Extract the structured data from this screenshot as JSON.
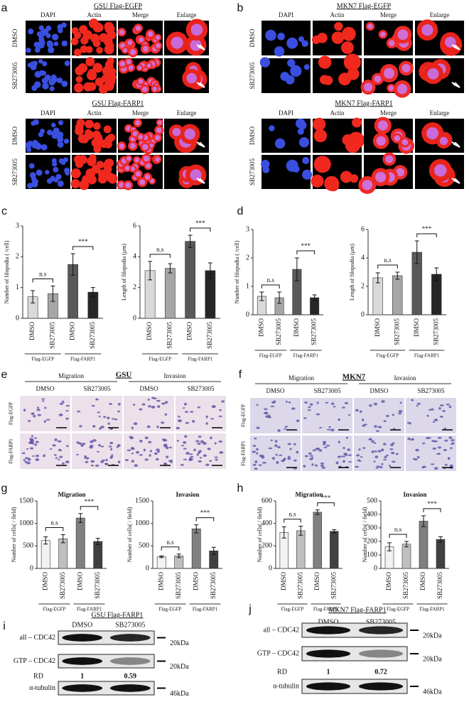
{
  "panels": {
    "a": {
      "letter": "a",
      "blocks": [
        {
          "title": "GSU Flag-EGFP",
          "columns": [
            "DAPI",
            "Actin",
            "Merge",
            "Enlarge"
          ],
          "rows": [
            "DMSO",
            "SB273005"
          ]
        },
        {
          "title": "GSU Flag-FARP1",
          "columns": [
            "DAPI",
            "Actin",
            "Merge",
            "Enlarge"
          ],
          "rows": [
            "DMSO",
            "SB273005"
          ]
        }
      ]
    },
    "b": {
      "letter": "b",
      "blocks": [
        {
          "title": "MKN7 Flag-EGFP",
          "columns": [
            "DAPI",
            "Actin",
            "Merge",
            "Enlarge"
          ],
          "rows": [
            "DMSO",
            "SB273005"
          ]
        },
        {
          "title": "MKN7 Flag-FARP1",
          "columns": [
            "DAPI",
            "Actin",
            "Merge",
            "Enlarge"
          ],
          "rows": [
            "DMSO",
            "SB273005"
          ]
        }
      ]
    },
    "c": {
      "letter": "c"
    },
    "d": {
      "letter": "d"
    },
    "e": {
      "letter": "e",
      "cell_line": "GSU",
      "assays": [
        "Migration",
        "Invasion"
      ],
      "columns": [
        "DMSO",
        "SB273005",
        "DMSO",
        "SB273005"
      ],
      "rows": [
        "Flag-EGFP",
        "Flag-FARP1"
      ]
    },
    "f": {
      "letter": "f",
      "cell_line": "MKN7",
      "assays": [
        "Migration",
        "Invasion"
      ],
      "columns": [
        "DMSO",
        "SB273005",
        "DMSO",
        "SB273005"
      ],
      "rows": [
        "Flag-EGFP",
        "Flag-FARP1"
      ]
    },
    "g": {
      "letter": "g"
    },
    "h": {
      "letter": "h"
    },
    "i": {
      "letter": "i",
      "title": "GSU Flag-FARP1",
      "columns": [
        "DMSO",
        "SB273005"
      ],
      "rows": [
        "all – CDC42",
        "GTP – CDC42",
        "α-tubulin"
      ],
      "markers": [
        "20kDa",
        "20kDa",
        "46kDa"
      ],
      "rd_label": "RD",
      "rd_values": [
        "1",
        "0.59"
      ]
    },
    "j": {
      "letter": "j",
      "title": "MKN7 Flag-FARP1",
      "columns": [
        "DMSO",
        "SB273005"
      ],
      "rows": [
        "all – CDC42",
        "GTP – CDC42",
        "α-tubulin"
      ],
      "markers": [
        "20kDa",
        "20kDa",
        "46kDa"
      ],
      "rd_label": "RD",
      "rd_values": [
        "1",
        "0.72"
      ]
    }
  },
  "chart_data": [
    {
      "type": "bar",
      "ylabel": "Number of filopodia ( /cell)",
      "categories": [
        "DMSO",
        "SB273005",
        "DMSO",
        "SB273005"
      ],
      "values": [
        0.7,
        0.8,
        1.75,
        0.85
      ],
      "errors": [
        0.2,
        0.25,
        0.35,
        0.15
      ],
      "colors": [
        "#d9d9d9",
        "#a6a6a6",
        "#595959",
        "#262626"
      ],
      "ylim": [
        0,
        3
      ],
      "yticks": [
        0,
        1,
        2,
        3
      ],
      "groups": [
        "Flag-EGFP",
        "Flag-FARP1"
      ],
      "annotations": [
        "n.s",
        "***"
      ]
    },
    {
      "type": "bar",
      "ylabel": "Length of filopodia (μm)",
      "categories": [
        "DMSO",
        "SB273005",
        "DMSO",
        "SB273005"
      ],
      "values": [
        3.1,
        3.25,
        5.0,
        3.1
      ],
      "errors": [
        0.6,
        0.3,
        0.4,
        0.5
      ],
      "colors": [
        "#d9d9d9",
        "#a6a6a6",
        "#595959",
        "#262626"
      ],
      "ylim": [
        0,
        6
      ],
      "yticks": [
        0,
        2,
        4,
        6
      ],
      "groups": [
        "Flag-EGFP",
        "Flag-FARP1"
      ],
      "annotations": [
        "n.s",
        "***"
      ]
    },
    {
      "type": "bar",
      "ylabel": "Number of filopodia ( /cell)",
      "categories": [
        "DMSO",
        "SB273005",
        "DMSO",
        "SB273005"
      ],
      "values": [
        0.65,
        0.6,
        1.6,
        0.6
      ],
      "errors": [
        0.15,
        0.2,
        0.4,
        0.1
      ],
      "colors": [
        "#d9d9d9",
        "#a6a6a6",
        "#595959",
        "#262626"
      ],
      "ylim": [
        0,
        3
      ],
      "yticks": [
        0,
        1,
        2,
        3
      ],
      "groups": [
        "Flag-EGFP",
        "Flag-FARP1"
      ],
      "annotations": [
        "n.s",
        "***"
      ]
    },
    {
      "type": "bar",
      "ylabel": "Length of filopodia (μm)",
      "categories": [
        "DMSO",
        "SB273005",
        "DMSO",
        "SB273005"
      ],
      "values": [
        2.6,
        2.75,
        4.4,
        2.85
      ],
      "errors": [
        0.35,
        0.25,
        0.8,
        0.45
      ],
      "colors": [
        "#d9d9d9",
        "#a6a6a6",
        "#595959",
        "#262626"
      ],
      "ylim": [
        0,
        6
      ],
      "yticks": [
        0,
        2,
        4,
        6
      ],
      "groups": [
        "Flag-EGFP",
        "Flag-FARP1"
      ],
      "annotations": [
        "n.s",
        "***"
      ]
    },
    {
      "type": "bar",
      "title": "Migration",
      "ylabel": "Number of cells( / field)",
      "categories": [
        "DMSO",
        "SB273005",
        "DMSO",
        "SB273005"
      ],
      "values": [
        620,
        660,
        1120,
        600
      ],
      "errors": [
        80,
        90,
        100,
        70
      ],
      "colors": [
        "#f2f2f2",
        "#bfbfbf",
        "#808080",
        "#404040"
      ],
      "ylim": [
        0,
        1500
      ],
      "yticks": [
        0,
        500,
        1000,
        1500
      ],
      "groups": [
        "Flag-EGFP",
        "Flag-FARP1"
      ],
      "annotations": [
        "n.s",
        "***"
      ]
    },
    {
      "type": "bar",
      "title": "Invasion",
      "ylabel": "Number of cells( / field)",
      "categories": [
        "DMSO",
        "SB273005",
        "DMSO",
        "SB273005"
      ],
      "values": [
        260,
        280,
        880,
        390
      ],
      "errors": [
        20,
        40,
        90,
        80
      ],
      "colors": [
        "#f2f2f2",
        "#bfbfbf",
        "#808080",
        "#404040"
      ],
      "ylim": [
        0,
        1500
      ],
      "yticks": [
        0,
        500,
        1000,
        1500
      ],
      "groups": [
        "Flag-EGFP",
        "Flag-FARP1"
      ],
      "annotations": [
        "n.s",
        "***"
      ]
    },
    {
      "type": "bar",
      "title": "Migration",
      "ylabel": "Number of cells( / field)",
      "categories": [
        "DMSO",
        "SB273005",
        "DMSO",
        "SB273005"
      ],
      "values": [
        320,
        335,
        500,
        330
      ],
      "errors": [
        50,
        40,
        20,
        15
      ],
      "colors": [
        "#f2f2f2",
        "#bfbfbf",
        "#808080",
        "#404040"
      ],
      "ylim": [
        0,
        600
      ],
      "yticks": [
        0,
        200,
        400,
        600
      ],
      "groups": [
        "Flag-EGFP",
        "Flag-FARP1"
      ],
      "annotations": [
        "n.s",
        "***"
      ]
    },
    {
      "type": "bar",
      "title": "Invasion",
      "ylabel": "Number of cells( / field)",
      "categories": [
        "DMSO",
        "SB273005",
        "DMSO",
        "SB273005"
      ],
      "values": [
        160,
        180,
        350,
        215
      ],
      "errors": [
        30,
        20,
        40,
        20
      ],
      "colors": [
        "#f2f2f2",
        "#bfbfbf",
        "#808080",
        "#404040"
      ],
      "ylim": [
        0,
        500
      ],
      "yticks": [
        0,
        100,
        200,
        300,
        400,
        500
      ],
      "groups": [
        "Flag-EGFP",
        "Flag-FARP1"
      ],
      "annotations": [
        "n.s",
        "***"
      ]
    }
  ]
}
